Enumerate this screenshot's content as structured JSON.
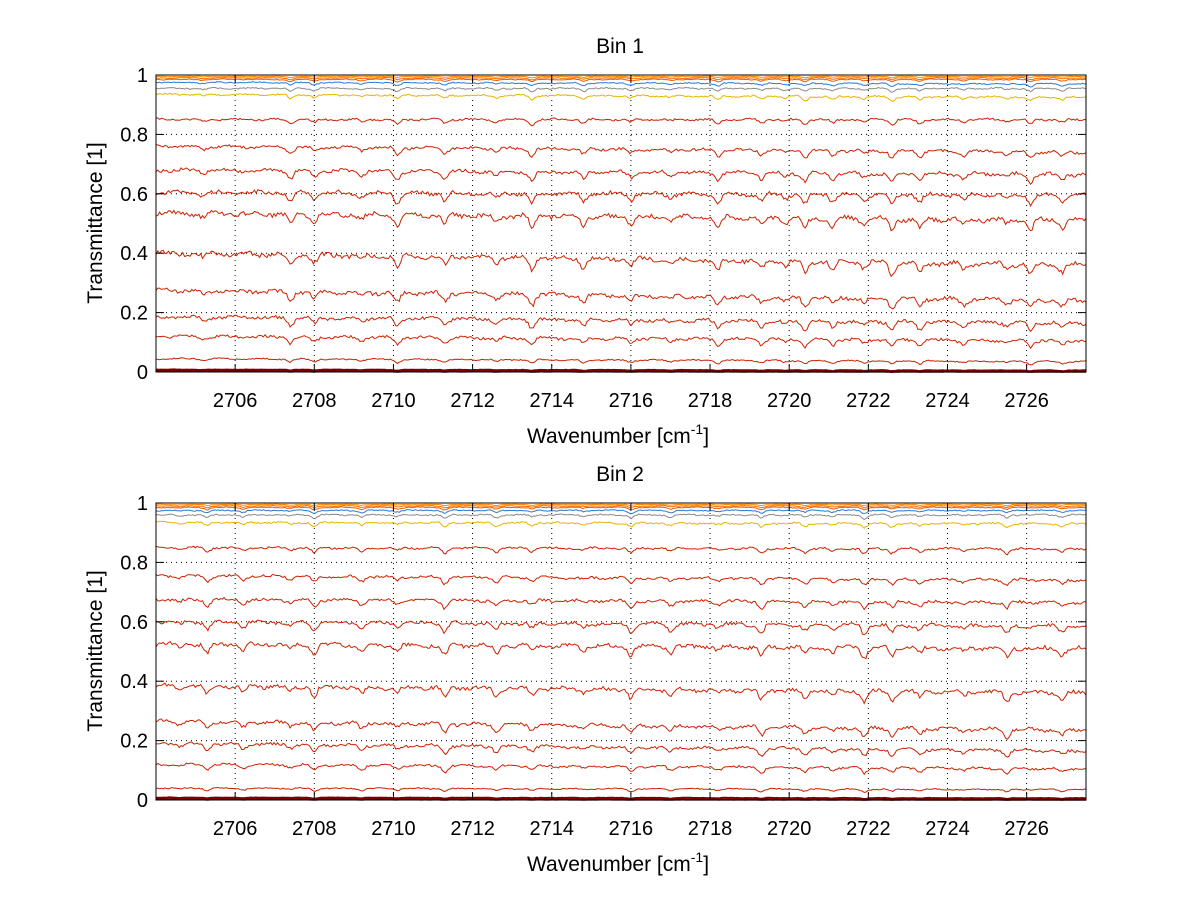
{
  "figure": {
    "background": "#ffffff",
    "panel_count": 2
  },
  "colors": {
    "primary_curve": "#cc2200",
    "top_curves": [
      "#ff8800",
      "#ff6a00",
      "#e85d00",
      "#2a7ad8",
      "#8a8a8a",
      "#e8b400"
    ],
    "baseline": "#7a0000",
    "axis": "#000000",
    "grid": "#000000"
  },
  "chart_data": [
    {
      "type": "line",
      "title": "Bin 1",
      "xlabel": "Wavenumber [cm",
      "xlabel_sup": "-1",
      "xlabel_suffix": "]",
      "ylabel": "Transmittance [1]",
      "xlim": [
        2704.0,
        2727.5
      ],
      "ylim": [
        0,
        1.0
      ],
      "grid": true,
      "xticks": [
        2706,
        2708,
        2710,
        2712,
        2714,
        2716,
        2718,
        2720,
        2722,
        2724,
        2726
      ],
      "xtick_labels": [
        "2706",
        "2708",
        "2710",
        "2712",
        "2714",
        "2716",
        "2718",
        "2720",
        "2722",
        "2724",
        "2726"
      ],
      "yticks": [
        0,
        0.2,
        0.4,
        0.6,
        0.8,
        1
      ],
      "ytick_labels": [
        "0",
        "0.2",
        "0.4",
        "0.6",
        "0.8",
        "1"
      ],
      "series_levels": [
        {
          "start": 0.995,
          "end": 0.995,
          "depth": 0.004
        },
        {
          "start": 0.99,
          "end": 0.99,
          "depth": 0.006
        },
        {
          "start": 0.985,
          "end": 0.985,
          "depth": 0.008
        },
        {
          "start": 0.975,
          "end": 0.97,
          "depth": 0.01
        },
        {
          "start": 0.955,
          "end": 0.955,
          "depth": 0.012
        },
        {
          "start": 0.935,
          "end": 0.925,
          "depth": 0.015
        },
        {
          "start": 0.85,
          "end": 0.85,
          "depth": 0.018
        },
        {
          "start": 0.76,
          "end": 0.74,
          "depth": 0.025
        },
        {
          "start": 0.68,
          "end": 0.665,
          "depth": 0.03
        },
        {
          "start": 0.605,
          "end": 0.595,
          "depth": 0.035
        },
        {
          "start": 0.535,
          "end": 0.51,
          "depth": 0.04
        },
        {
          "start": 0.4,
          "end": 0.36,
          "depth": 0.04
        },
        {
          "start": 0.275,
          "end": 0.24,
          "depth": 0.035
        },
        {
          "start": 0.185,
          "end": 0.165,
          "depth": 0.03
        },
        {
          "start": 0.12,
          "end": 0.105,
          "depth": 0.025
        },
        {
          "start": 0.045,
          "end": 0.035,
          "depth": 0.012
        },
        {
          "start": 0.008,
          "end": 0.005,
          "depth": 0.003
        },
        {
          "start": 0.002,
          "end": 0.001,
          "depth": 0.001
        }
      ],
      "absorption_lines": [
        2705.2,
        2707.4,
        2708.0,
        2709.2,
        2710.1,
        2711.3,
        2712.6,
        2713.5,
        2714.8,
        2716.0,
        2717.0,
        2718.2,
        2719.3,
        2719.9,
        2720.4,
        2721.1,
        2721.9,
        2722.6,
        2723.3,
        2724.4,
        2725.5,
        2726.1,
        2726.9
      ]
    },
    {
      "type": "line",
      "title": "Bin 2",
      "xlabel": "Wavenumber [cm",
      "xlabel_sup": "-1",
      "xlabel_suffix": "]",
      "ylabel": "Transmittance [1]",
      "xlim": [
        2704.0,
        2727.5
      ],
      "ylim": [
        0,
        1.0
      ],
      "grid": true,
      "xticks": [
        2706,
        2708,
        2710,
        2712,
        2714,
        2716,
        2718,
        2720,
        2722,
        2724,
        2726
      ],
      "xtick_labels": [
        "2706",
        "2708",
        "2710",
        "2712",
        "2714",
        "2716",
        "2718",
        "2720",
        "2722",
        "2724",
        "2726"
      ],
      "yticks": [
        0,
        0.2,
        0.4,
        0.6,
        0.8,
        1
      ],
      "ytick_labels": [
        "0",
        "0.2",
        "0.4",
        "0.6",
        "0.8",
        "1"
      ],
      "series_levels": [
        {
          "start": 0.995,
          "end": 0.995,
          "depth": 0.004
        },
        {
          "start": 0.99,
          "end": 0.99,
          "depth": 0.006
        },
        {
          "start": 0.985,
          "end": 0.985,
          "depth": 0.008
        },
        {
          "start": 0.975,
          "end": 0.975,
          "depth": 0.01
        },
        {
          "start": 0.96,
          "end": 0.96,
          "depth": 0.012
        },
        {
          "start": 0.935,
          "end": 0.93,
          "depth": 0.015
        },
        {
          "start": 0.85,
          "end": 0.845,
          "depth": 0.018
        },
        {
          "start": 0.755,
          "end": 0.74,
          "depth": 0.022
        },
        {
          "start": 0.675,
          "end": 0.665,
          "depth": 0.025
        },
        {
          "start": 0.6,
          "end": 0.585,
          "depth": 0.03
        },
        {
          "start": 0.525,
          "end": 0.51,
          "depth": 0.035
        },
        {
          "start": 0.385,
          "end": 0.36,
          "depth": 0.035
        },
        {
          "start": 0.265,
          "end": 0.235,
          "depth": 0.03
        },
        {
          "start": 0.19,
          "end": 0.165,
          "depth": 0.025
        },
        {
          "start": 0.12,
          "end": 0.105,
          "depth": 0.02
        },
        {
          "start": 0.04,
          "end": 0.035,
          "depth": 0.01
        },
        {
          "start": 0.008,
          "end": 0.006,
          "depth": 0.003
        },
        {
          "start": 0.002,
          "end": 0.001,
          "depth": 0.001
        }
      ],
      "absorption_lines": [
        2704.6,
        2705.3,
        2706.2,
        2707.4,
        2708.0,
        2709.2,
        2710.1,
        2711.3,
        2712.6,
        2713.5,
        2714.8,
        2716.0,
        2717.0,
        2718.2,
        2719.3,
        2720.4,
        2721.1,
        2721.9,
        2722.6,
        2723.3,
        2724.4,
        2725.5,
        2726.9
      ]
    }
  ]
}
